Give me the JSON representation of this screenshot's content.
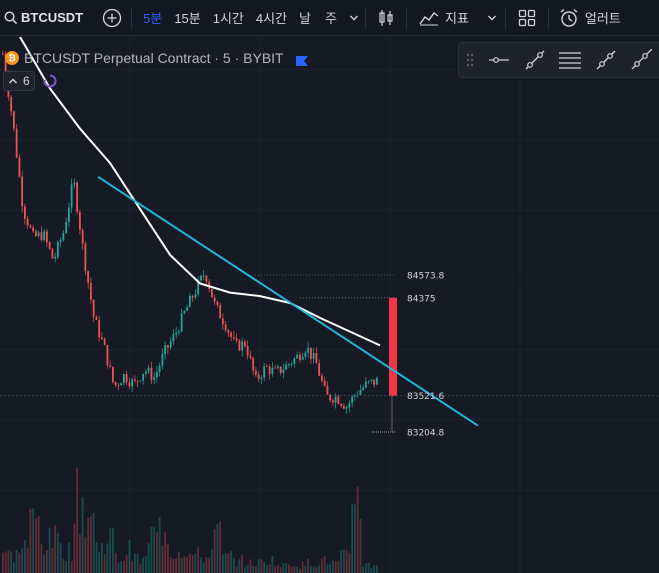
{
  "toolbar": {
    "symbol": "BTCUSDT",
    "timeframes": [
      "5분",
      "15분",
      "1시간",
      "4시간",
      "날",
      "주"
    ],
    "active_timeframe": "5분",
    "indicators_label": "지표",
    "alert_label": "얼러트"
  },
  "legend": {
    "coin_glyph": "₿",
    "title": "BTCUSDT Perpetual Contract · 5 · BYBIT",
    "flag_color": "#2962ff"
  },
  "indicator": {
    "value": "6"
  },
  "drawing_tools": [
    "horizontal-ray-icon",
    "trend-line-icon",
    "parallel-channel-icon",
    "ray-icon",
    "extended-line-icon"
  ],
  "colors": {
    "background": "#161a25",
    "up": "#26a69a",
    "down": "#ef5350",
    "ma_line": "#ffffff",
    "trend_line": "#22b5d6",
    "position_box": "#f23645",
    "accent": "#2962ff"
  },
  "chart_data": {
    "type": "candlestick",
    "symbol": "BTCUSDT",
    "exchange": "BYBIT",
    "interval_minutes": 5,
    "ylim": [
      82900,
      86700
    ],
    "price_labels": [
      {
        "value": 84573.8,
        "text": "84573.8"
      },
      {
        "value": 84375,
        "text": "84375"
      },
      {
        "value": 83521.6,
        "text": "83521.6"
      },
      {
        "value": 83204.8,
        "text": "83204.8"
      }
    ],
    "close_path": [
      86500,
      85900,
      85150,
      84900,
      84930,
      84700,
      84950,
      85400,
      84750,
      84200,
      83950,
      83600,
      83700,
      83620,
      83750,
      83680,
      83900,
      84050,
      84250,
      84430,
      84600,
      84300,
      84150,
      83950,
      83980,
      83650,
      83770,
      83720,
      83780,
      83850,
      83950,
      83800,
      83510,
      83510,
      83430,
      83550,
      83620,
      83650
    ],
    "moving_average": [
      86650,
      86200,
      85850,
      85550,
      85150,
      84750,
      84500,
      84420,
      84390,
      84330,
      84200,
      84080,
      83960
    ],
    "trend_line": {
      "start": 85430,
      "end": 83260
    },
    "short_position": {
      "entry": 83521.6,
      "stop": 84375,
      "target": 83204.8
    },
    "volume": [
      2.5,
      2.2,
      3.4,
      6.2,
      3.8,
      4.1,
      2.8,
      8.8,
      7.0,
      3.2,
      4.4,
      1.8,
      2.9,
      1.6,
      4.6,
      5.4,
      2.6,
      3.0,
      2.2,
      1.9,
      4.7,
      2.0,
      1.5,
      1.2,
      1.3,
      1.6,
      0.9,
      1.2,
      1.0,
      1.3,
      1.5,
      1.2,
      2.0,
      10.0,
      1.0,
      1.0
    ]
  }
}
